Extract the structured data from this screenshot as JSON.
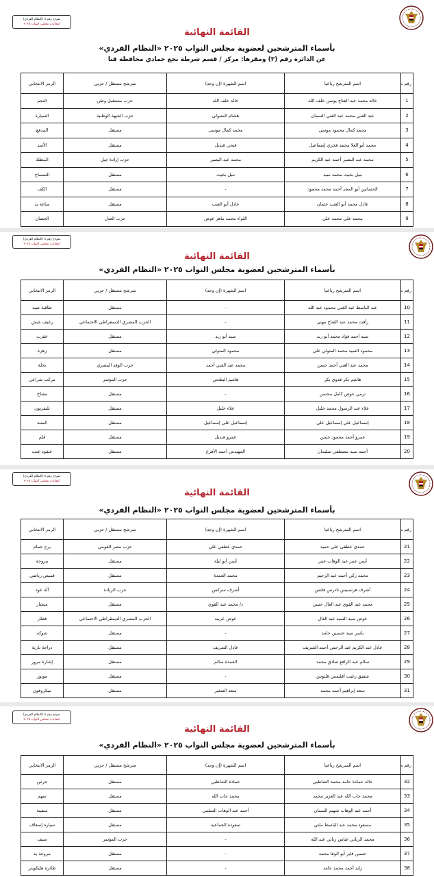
{
  "document": {
    "stamp_line1": "نموذج رقم ٥ (النظام الفردي)",
    "stamp_line2": "انتخابات مجلس النواب ٢٠٢٥",
    "logo": "egypt-eagle-emblem",
    "title": "القائمة النهائية",
    "subtitle": "بأسماء المترشحين لعضوية مجلس النواب ٢٠٢٥ «النظام الفردي»",
    "district": "عن الدائرة رقم (٣)   ومقرها: مركز / قسم شرطة نجع حمادي   محافظة قنا",
    "title_color": "#b3262e",
    "headers": {
      "serial": "رقم مسلسل",
      "name": "اسم المترشح رباعيا",
      "fame": "اسم الشهرة (إن وجد)",
      "type": "مترشح مستقل / حزبي",
      "symbol": "الرمز الانتخابي"
    }
  },
  "pages": [
    {
      "rows": [
        {
          "n": "1",
          "name": "خالد محمد عبد الفتاح يونس خلف الله",
          "fame": "خالد خلف الله",
          "type": "حزب مستقبل وطن",
          "symbol": "النجم"
        },
        {
          "n": "2",
          "name": "عبد الغني محمد عبد الغني السمان",
          "fame": "هشام المتبولي",
          "type": "حزب الجبهة الوطنية",
          "symbol": "السيارة"
        },
        {
          "n": "3",
          "name": "محمد كمال محمود موسى",
          "fame": "محمد كمال موسى",
          "type": "مستقل",
          "symbol": "المدفع"
        },
        {
          "n": "4",
          "name": "محمد أبو العلا محمد فخري إسماعيل",
          "fame": "فتحي قنديل",
          "type": "مستقل",
          "symbol": "الأسد"
        },
        {
          "n": "5",
          "name": "محمد عبد البصير أحمد عبد الكريم",
          "fame": "محمد عبد البصير",
          "type": "حزب إرادة جيل",
          "symbol": "المظلة"
        },
        {
          "n": "6",
          "name": "نبيل بخيت محمد سيد",
          "fame": "نبيل بخيت",
          "type": "مستقل",
          "symbol": "التمساح"
        },
        {
          "n": "7",
          "name": "الحسانين أبو المجد أحمد محمد محمود",
          "fame": "-",
          "type": "مستقل",
          "symbol": "الكف"
        },
        {
          "n": "8",
          "name": "عادل محمد أبو العتب عثمان",
          "fame": "عادل أبو العتب",
          "type": "مستقل",
          "symbol": "ساعة يد"
        },
        {
          "n": "9",
          "name": "محمد علي محمد علي",
          "fame": "اللواء محمد ماهر عوض",
          "type": "حزب العدل",
          "symbol": "الحصان"
        }
      ]
    },
    {
      "rows": [
        {
          "n": "10",
          "name": "عبد الباسط عبد الغني محمود عبد الله",
          "fame": "-",
          "type": "مستقل",
          "symbol": "طاقية صيد"
        },
        {
          "n": "11",
          "name": "رأفت محمد عبد الفتاح مهني",
          "fame": "-",
          "type": "الحزب المصري الديمقراطي الاجتماعي",
          "symbol": "رغيف عيش"
        },
        {
          "n": "12",
          "name": "سيد أحمد فؤاد محمد أبو زيد",
          "fame": "سيد أبو زيد",
          "type": "مستقل",
          "symbol": "عقرب"
        },
        {
          "n": "13",
          "name": "محمود السيد محمد المتولي علي",
          "fame": "محمود المتولي",
          "type": "مستقل",
          "symbol": "زهرة"
        },
        {
          "n": "14",
          "name": "محمد عبد الغني أحمد حسن",
          "fame": "محمد عبد الغني أحمد",
          "type": "حزب الوفد المصري",
          "symbol": "نخلة"
        },
        {
          "n": "15",
          "name": "هاشم بكر فدوي بكر",
          "fame": "هاشم البطحي",
          "type": "حزب المؤتمر",
          "symbol": "مركب شراعي"
        },
        {
          "n": "16",
          "name": "ترمي عوض كامل محسن",
          "fame": "-",
          "type": "مستقل",
          "symbol": "مفتاح"
        },
        {
          "n": "17",
          "name": "علاء عبد الرسول محمد خليل",
          "fame": "علاء خليل",
          "type": "مستقل",
          "symbol": "تليفزيون"
        },
        {
          "n": "18",
          "name": "إسماعيل علي إسماعيل علي",
          "fame": "إسماعيل علي إسماعيل",
          "type": "مستقل",
          "symbol": "المنبه"
        },
        {
          "n": "19",
          "name": "عمرو أحمد محمود حسن",
          "fame": "عمرو قنديل",
          "type": "مستقل",
          "symbol": "قلم"
        },
        {
          "n": "20",
          "name": "أحمد سيد مصطفى سليمان",
          "fame": "المهندس أحمد الأفرع",
          "type": "مستقل",
          "symbol": "عنقود عنب"
        }
      ]
    },
    {
      "rows": [
        {
          "n": "21",
          "name": "حمدي عطفي علي حميد",
          "fame": "حمدي عطفي علي",
          "type": "حزب مصر القومي",
          "symbol": "برج حمام"
        },
        {
          "n": "22",
          "name": "أيمن عمر عبد الوهاب عمر",
          "fame": "أيمن أبو ليلة",
          "type": "مستقل",
          "symbol": "مروحة"
        },
        {
          "n": "23",
          "name": "محمد زكي أحمد عبد الرحيم",
          "fame": "محمد العمدة",
          "type": "مستقل",
          "symbol": "قميص رياضي"
        },
        {
          "n": "24",
          "name": "أشرف فرنسيس تادرس فلتس",
          "fame": "أشرف سركس",
          "type": "حزب الريادة",
          "symbol": "آلة عود"
        },
        {
          "n": "25",
          "name": "محمد عبد القوي عبد العال حسن",
          "fame": "د/ محمد عبد القوي",
          "type": "مستقل",
          "symbol": "منشار"
        },
        {
          "n": "26",
          "name": "عوض سيد السيد عبد العال",
          "fame": "عوض عربيد",
          "type": "الحزب المصري الديمقراطي الاجتماعي",
          "symbol": "قطار"
        },
        {
          "n": "27",
          "name": "ياسر سيد حسنين حامد",
          "fame": "-",
          "type": "مستقل",
          "symbol": "شوكة"
        },
        {
          "n": "28",
          "name": "عادل عبد الكريم عبد الرحمن أحمد الشريف",
          "fame": "عادل الشريف",
          "type": "مستقل",
          "symbol": "دراجة نارية"
        },
        {
          "n": "29",
          "name": "سالم عبد الرافع صادق محمد",
          "fame": "العمدة سالم",
          "type": "مستقل",
          "symbol": "إشارة مرور"
        },
        {
          "n": "30",
          "name": "شفيق رغيب أقليمس قلتوس",
          "fame": "-",
          "type": "مستقل",
          "symbol": "موتور"
        },
        {
          "n": "31",
          "name": "سعد إبراهيم أحمد محمد",
          "fame": "سعد الصغير",
          "type": "مستقل",
          "symbol": "ميكروفون"
        }
      ]
    },
    {
      "rows": [
        {
          "n": "32",
          "name": "خالد حمادة حامد محمد الشاطبي",
          "fame": "حمادة الشاطبي",
          "type": "مستقل",
          "symbol": "جرس"
        },
        {
          "n": "33",
          "name": "محمد جاب الله عبد العزيز محمد",
          "fame": "محمد جاب الله",
          "type": "مستقل",
          "symbol": "سهم"
        },
        {
          "n": "34",
          "name": "أحمد عبد الوهاب شهيم السمان",
          "fame": "أحمد عبد الوهاب السلمي",
          "type": "مستقل",
          "symbol": "سفينة"
        },
        {
          "n": "35",
          "name": "مسعود محمد عبد الباسط ملتي",
          "fame": "سعودة الجماعية",
          "type": "مستقل",
          "symbol": "سيارة إسعاف"
        },
        {
          "n": "36",
          "name": "محمد الزناتي عباس زناتي عبد الله",
          "fame": "-",
          "type": "حزب المؤتمر",
          "symbol": "سيف"
        },
        {
          "n": "37",
          "name": "حسين فايز أبو الوفا محمد",
          "fame": "-",
          "type": "مستقل",
          "symbol": "مروحة يد"
        },
        {
          "n": "38",
          "name": "زايد أحمد محمد حامد",
          "fame": "-",
          "type": "مستقل",
          "symbol": "طائرة هليكوبتر"
        }
      ]
    }
  ]
}
